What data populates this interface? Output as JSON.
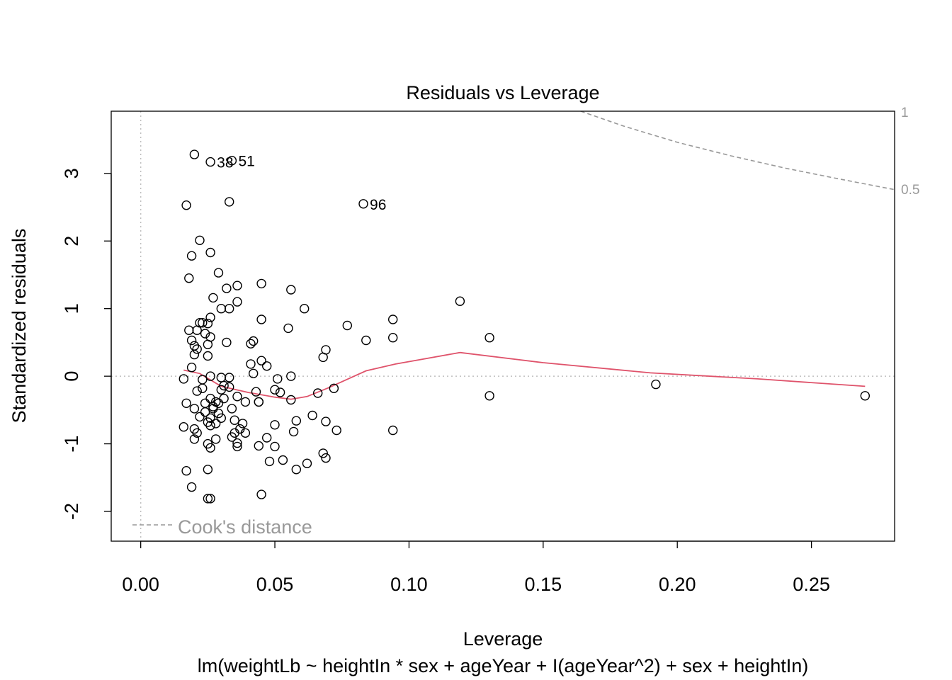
{
  "chart_data": {
    "type": "scatter",
    "title": "Residuals vs Leverage",
    "xlabel": "Leverage",
    "ylabel": "Standardized residuals",
    "subtitle": "lm(weightLb ~ heightIn * sex + ageYear + I(ageYear^2) + sex + heightIn)",
    "xlim": [
      -0.011,
      0.281
    ],
    "ylim": [
      -2.44,
      3.92
    ],
    "x_ticks": [
      "0.00",
      "0.05",
      "0.10",
      "0.15",
      "0.20",
      "0.25"
    ],
    "y_ticks": [
      "-2",
      "-1",
      "0",
      "1",
      "2",
      "3"
    ],
    "legend": {
      "label": "Cook's distance",
      "position": "bottom-left",
      "color": "#999999"
    },
    "cook_levels": [
      "1",
      "0.5"
    ],
    "colors": {
      "smoother": "#DF536B",
      "cook": "#999999",
      "reference": "#BEBEBE",
      "points": "#000000"
    },
    "grid": false,
    "labeled_points": [
      {
        "label": "38",
        "x": 0.026,
        "y": 3.17
      },
      {
        "label": "51",
        "x": 0.034,
        "y": 3.19
      },
      {
        "label": "96",
        "x": 0.083,
        "y": 2.55
      }
    ],
    "smoother": [
      [
        0.016,
        0.09
      ],
      [
        0.022,
        0.04
      ],
      [
        0.03,
        -0.15
      ],
      [
        0.04,
        -0.24
      ],
      [
        0.05,
        -0.31
      ],
      [
        0.056,
        -0.34
      ],
      [
        0.062,
        -0.3
      ],
      [
        0.07,
        -0.17
      ],
      [
        0.084,
        0.08
      ],
      [
        0.095,
        0.18
      ],
      [
        0.119,
        0.35
      ],
      [
        0.15,
        0.2
      ],
      [
        0.19,
        0.05
      ],
      [
        0.23,
        -0.04
      ],
      [
        0.27,
        -0.15
      ]
    ],
    "cook_curve": [
      [
        0.164,
        3.92
      ],
      [
        0.18,
        3.7
      ],
      [
        0.2,
        3.46
      ],
      [
        0.22,
        3.26
      ],
      [
        0.24,
        3.08
      ],
      [
        0.26,
        2.92
      ],
      [
        0.281,
        2.76
      ]
    ],
    "points": [
      [
        0.02,
        3.28
      ],
      [
        0.026,
        3.17
      ],
      [
        0.034,
        3.19
      ],
      [
        0.017,
        2.53
      ],
      [
        0.033,
        2.58
      ],
      [
        0.083,
        2.55
      ],
      [
        0.022,
        2.01
      ],
      [
        0.019,
        1.78
      ],
      [
        0.026,
        1.83
      ],
      [
        0.018,
        1.45
      ],
      [
        0.029,
        1.53
      ],
      [
        0.032,
        1.3
      ],
      [
        0.036,
        1.34
      ],
      [
        0.045,
        1.37
      ],
      [
        0.056,
        1.28
      ],
      [
        0.027,
        1.16
      ],
      [
        0.036,
        1.1
      ],
      [
        0.03,
        1.0
      ],
      [
        0.033,
        1.0
      ],
      [
        0.061,
        1.0
      ],
      [
        0.119,
        1.11
      ],
      [
        0.026,
        0.87
      ],
      [
        0.045,
        0.84
      ],
      [
        0.094,
        0.84
      ],
      [
        0.022,
        0.79
      ],
      [
        0.023,
        0.79
      ],
      [
        0.025,
        0.78
      ],
      [
        0.018,
        0.68
      ],
      [
        0.021,
        0.68
      ],
      [
        0.024,
        0.63
      ],
      [
        0.055,
        0.71
      ],
      [
        0.077,
        0.75
      ],
      [
        0.019,
        0.53
      ],
      [
        0.026,
        0.58
      ],
      [
        0.032,
        0.5
      ],
      [
        0.042,
        0.52
      ],
      [
        0.041,
        0.48
      ],
      [
        0.084,
        0.53
      ],
      [
        0.094,
        0.57
      ],
      [
        0.13,
        0.57
      ],
      [
        0.02,
        0.45
      ],
      [
        0.021,
        0.4
      ],
      [
        0.025,
        0.47
      ],
      [
        0.069,
        0.39
      ],
      [
        0.068,
        0.28
      ],
      [
        0.025,
        0.3
      ],
      [
        0.045,
        0.23
      ],
      [
        0.02,
        0.32
      ],
      [
        0.019,
        0.13
      ],
      [
        0.041,
        0.18
      ],
      [
        0.042,
        0.04
      ],
      [
        0.047,
        0.15
      ],
      [
        0.016,
        -0.04
      ],
      [
        0.023,
        -0.05
      ],
      [
        0.026,
        0.0
      ],
      [
        0.03,
        -0.02
      ],
      [
        0.033,
        -0.02
      ],
      [
        0.051,
        -0.04
      ],
      [
        0.056,
        0.0
      ],
      [
        0.021,
        -0.22
      ],
      [
        0.023,
        -0.18
      ],
      [
        0.026,
        -0.33
      ],
      [
        0.028,
        -0.38
      ],
      [
        0.031,
        -0.14
      ],
      [
        0.033,
        -0.16
      ],
      [
        0.036,
        -0.3
      ],
      [
        0.039,
        -0.38
      ],
      [
        0.043,
        -0.23
      ],
      [
        0.044,
        -0.38
      ],
      [
        0.05,
        -0.2
      ],
      [
        0.052,
        -0.24
      ],
      [
        0.056,
        -0.35
      ],
      [
        0.066,
        -0.25
      ],
      [
        0.072,
        -0.18
      ],
      [
        0.017,
        -0.4
      ],
      [
        0.02,
        -0.48
      ],
      [
        0.024,
        -0.53
      ],
      [
        0.026,
        -0.62
      ],
      [
        0.027,
        -0.48
      ],
      [
        0.029,
        -0.4
      ],
      [
        0.031,
        -0.33
      ],
      [
        0.034,
        -0.48
      ],
      [
        0.035,
        -0.65
      ],
      [
        0.037,
        -0.78
      ],
      [
        0.038,
        -0.7
      ],
      [
        0.016,
        -0.75
      ],
      [
        0.02,
        -0.78
      ],
      [
        0.021,
        -0.84
      ],
      [
        0.025,
        -0.68
      ],
      [
        0.026,
        -0.73
      ],
      [
        0.028,
        -0.7
      ],
      [
        0.03,
        -0.62
      ],
      [
        0.035,
        -0.84
      ],
      [
        0.036,
        -0.99
      ],
      [
        0.039,
        -0.84
      ],
      [
        0.044,
        -0.38
      ],
      [
        0.05,
        -0.72
      ],
      [
        0.057,
        -0.82
      ],
      [
        0.058,
        -0.66
      ],
      [
        0.064,
        -0.58
      ],
      [
        0.069,
        -0.67
      ],
      [
        0.073,
        -0.8
      ],
      [
        0.094,
        -0.8
      ],
      [
        0.192,
        -0.12
      ],
      [
        0.13,
        -0.29
      ],
      [
        0.27,
        -0.29
      ],
      [
        0.02,
        -0.93
      ],
      [
        0.028,
        -0.93
      ],
      [
        0.025,
        -1.0
      ],
      [
        0.026,
        -1.06
      ],
      [
        0.036,
        -1.04
      ],
      [
        0.044,
        -1.03
      ],
      [
        0.047,
        -0.91
      ],
      [
        0.05,
        -1.04
      ],
      [
        0.068,
        -1.14
      ],
      [
        0.069,
        -1.21
      ],
      [
        0.017,
        -1.4
      ],
      [
        0.025,
        -1.38
      ],
      [
        0.048,
        -1.26
      ],
      [
        0.053,
        -1.24
      ],
      [
        0.058,
        -1.38
      ],
      [
        0.062,
        -1.29
      ],
      [
        0.019,
        -1.64
      ],
      [
        0.025,
        -1.81
      ],
      [
        0.026,
        -1.81
      ],
      [
        0.045,
        -1.75
      ],
      [
        0.024,
        -0.4
      ],
      [
        0.027,
        -0.45
      ],
      [
        0.029,
        -0.55
      ],
      [
        0.022,
        -0.6
      ],
      [
        0.034,
        -0.9
      ],
      [
        0.03,
        -0.2
      ]
    ]
  }
}
